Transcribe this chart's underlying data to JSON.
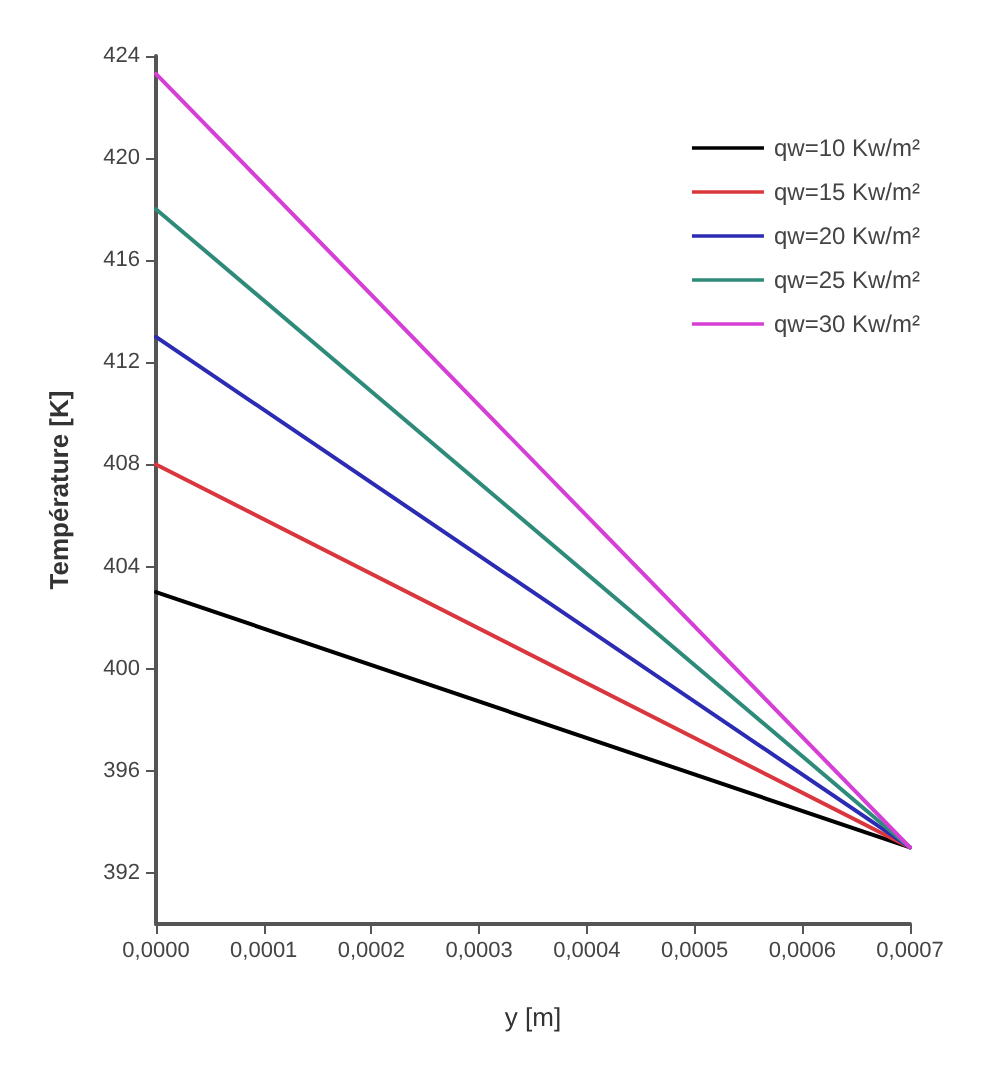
{
  "chart_data": {
    "type": "line",
    "xlabel": "y [m]",
    "ylabel": "Température [K]",
    "x": [
      0,
      0.0007
    ],
    "series": [
      {
        "name": "qw=10 Kw/m²",
        "color": "#000000",
        "values": [
          403,
          393
        ]
      },
      {
        "name": "qw=15 Kw/m²",
        "color": "#d9363e",
        "values": [
          408,
          393
        ]
      },
      {
        "name": "qw=20 Kw/m²",
        "color": "#2b2bb3",
        "values": [
          413,
          393
        ]
      },
      {
        "name": "qw=25 Kw/m²",
        "color": "#2e8b7a",
        "values": [
          418,
          393
        ]
      },
      {
        "name": "qw=30 Kw/m²",
        "color": "#d63fd6",
        "values": [
          423.3,
          393
        ]
      }
    ],
    "xlim": [
      0,
      0.0007
    ],
    "xticks": [
      {
        "value": 0,
        "label": "0,0000"
      },
      {
        "value": 0.0001,
        "label": "0,0001"
      },
      {
        "value": 0.0002,
        "label": "0,0002"
      },
      {
        "value": 0.0003,
        "label": "0,0003"
      },
      {
        "value": 0.0004,
        "label": "0,0004"
      },
      {
        "value": 0.0005,
        "label": "0,0005"
      },
      {
        "value": 0.0006,
        "label": "0,0006"
      },
      {
        "value": 0.0007,
        "label": "0,0007"
      }
    ],
    "ylim": [
      390,
      424
    ],
    "yticks": [
      392,
      396,
      400,
      404,
      408,
      412,
      416,
      420,
      424
    ],
    "grid": false,
    "legend": "top right",
    "marker": "none",
    "line_style": "solid"
  }
}
